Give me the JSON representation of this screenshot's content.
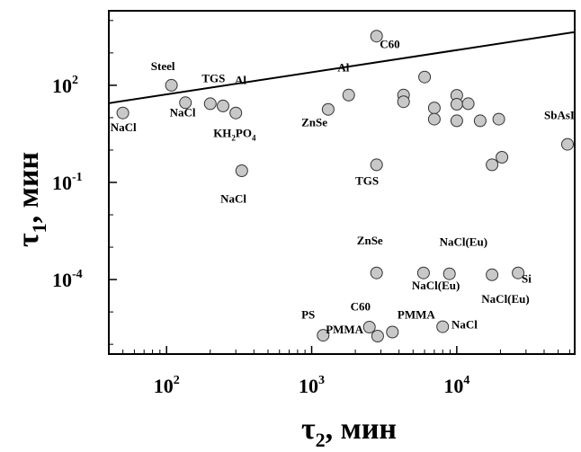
{
  "chart_data": {
    "type": "scatter",
    "title": "",
    "xlabel": "τ₂, мин",
    "ylabel": "τ₁, мин",
    "xscale": "log",
    "yscale": "log",
    "xlim": [
      40,
      65000
    ],
    "ylim": [
      5e-07,
      20000
    ],
    "x_ticks": [
      {
        "value": 100,
        "mantissa": "10",
        "exp": "2"
      },
      {
        "value": 1000,
        "mantissa": "10",
        "exp": "3"
      },
      {
        "value": 10000,
        "mantissa": "10",
        "exp": "4"
      }
    ],
    "y_ticks": [
      {
        "value": 100,
        "mantissa": "10",
        "exp": "2"
      },
      {
        "value": 0.1,
        "mantissa": "10",
        "exp": "-1"
      },
      {
        "value": 0.0001,
        "mantissa": "10",
        "exp": "-4"
      }
    ],
    "grid": false,
    "marker_color": "#c8c8c8",
    "line": {
      "x": [
        40,
        65000
      ],
      "y": [
        28,
        4400
      ]
    },
    "points": [
      {
        "x": 50,
        "y": 14
      },
      {
        "x": 108,
        "y": 100
      },
      {
        "x": 135,
        "y": 29
      },
      {
        "x": 200,
        "y": 27
      },
      {
        "x": 245,
        "y": 23
      },
      {
        "x": 300,
        "y": 14
      },
      {
        "x": 330,
        "y": 0.23
      },
      {
        "x": 1300,
        "y": 18
      },
      {
        "x": 1800,
        "y": 50
      },
      {
        "x": 2800,
        "y": 3300
      },
      {
        "x": 2800,
        "y": 0.35
      },
      {
        "x": 4300,
        "y": 50
      },
      {
        "x": 4300,
        "y": 31
      },
      {
        "x": 6000,
        "y": 180
      },
      {
        "x": 7000,
        "y": 20
      },
      {
        "x": 7000,
        "y": 9
      },
      {
        "x": 10000,
        "y": 49
      },
      {
        "x": 10000,
        "y": 26
      },
      {
        "x": 10000,
        "y": 8
      },
      {
        "x": 12000,
        "y": 27
      },
      {
        "x": 14500,
        "y": 8
      },
      {
        "x": 17500,
        "y": 0.35
      },
      {
        "x": 19500,
        "y": 9
      },
      {
        "x": 20500,
        "y": 0.6
      },
      {
        "x": 58000,
        "y": 1.5
      },
      {
        "x": 2800,
        "y": 0.00016
      },
      {
        "x": 5900,
        "y": 0.00016
      },
      {
        "x": 8900,
        "y": 0.00015
      },
      {
        "x": 17500,
        "y": 0.00014
      },
      {
        "x": 26500,
        "y": 0.00016
      },
      {
        "x": 1200,
        "y": 1.9e-06
      },
      {
        "x": 2500,
        "y": 3.4e-06
      },
      {
        "x": 2850,
        "y": 1.8e-06
      },
      {
        "x": 3600,
        "y": 2.4e-06
      },
      {
        "x": 8000,
        "y": 3.5e-06
      }
    ],
    "annotations": [
      {
        "text": "Steel",
        "x": 78,
        "y": 290
      },
      {
        "text": "TGS",
        "x": 175,
        "y": 125
      },
      {
        "text": "Al",
        "x": 295,
        "y": 110
      },
      {
        "text": "NaCl",
        "x": 105,
        "y": 11
      },
      {
        "text": "NaCl",
        "x": 41,
        "y": 3.8
      },
      {
        "text": "KH2PO4",
        "x": 210,
        "y": 2.5
      },
      {
        "text": "NaCl",
        "x": 235,
        "y": 0.024
      },
      {
        "text": "Al",
        "x": 1510,
        "y": 270
      },
      {
        "text": "ZnSe",
        "x": 850,
        "y": 5.5
      },
      {
        "text": "TGS",
        "x": 2000,
        "y": 0.085
      },
      {
        "text": "C60",
        "x": 2950,
        "y": 1400
      },
      {
        "text": "SbAsI",
        "x": 40000,
        "y": 9
      },
      {
        "text": "ZnSe",
        "x": 2050,
        "y": 0.0012
      },
      {
        "text": "NaCl(Eu)",
        "x": 7600,
        "y": 0.0011
      },
      {
        "text": "NaCl(Eu)",
        "x": 4900,
        "y": 5e-05
      },
      {
        "text": "NaCl(Eu)",
        "x": 14800,
        "y": 1.9e-05
      },
      {
        "text": "Si",
        "x": 28000,
        "y": 8e-05
      },
      {
        "text": "C60",
        "x": 1850,
        "y": 1.1e-05
      },
      {
        "text": "PS",
        "x": 850,
        "y": 6.3e-06
      },
      {
        "text": "PMMA",
        "x": 3900,
        "y": 6.3e-06
      },
      {
        "text": "NaCl",
        "x": 9200,
        "y": 3.1e-06
      },
      {
        "text": "PMMA",
        "x": 1250,
        "y": 2.2e-06
      }
    ]
  }
}
